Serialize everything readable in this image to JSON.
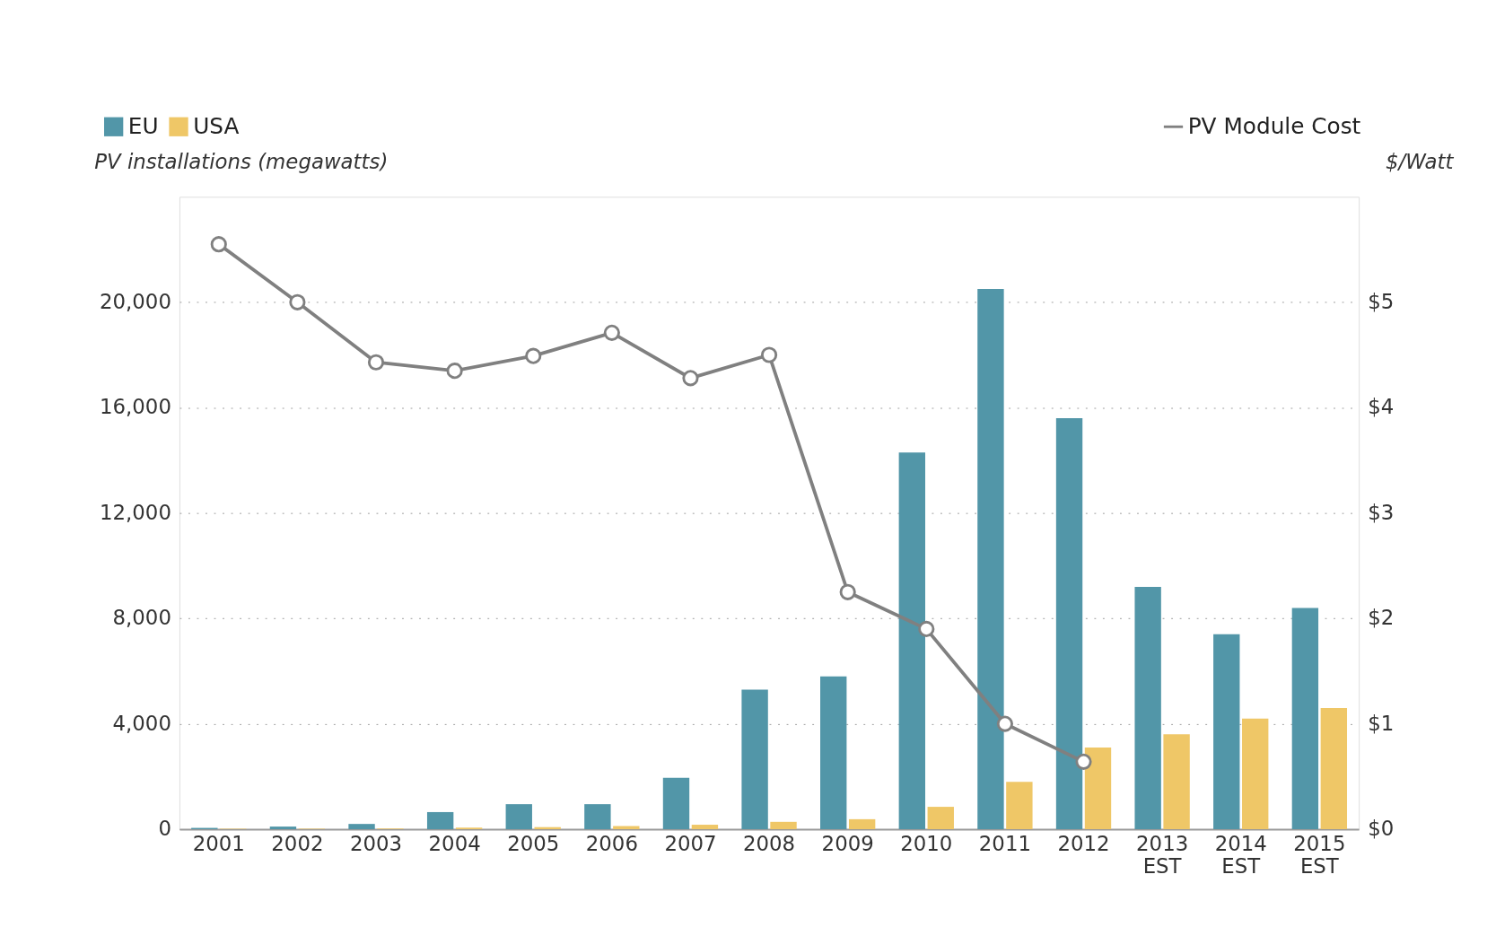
{
  "chart_data": {
    "type": "bar",
    "categories": [
      "2001",
      "2002",
      "2003",
      "2004",
      "2005",
      "2006",
      "2007",
      "2008",
      "2009",
      "2010",
      "2011",
      "2012",
      "2013 EST",
      "2014 EST",
      "2015 EST"
    ],
    "ylabel": "PV installations (megawatts)",
    "y2label": "$/Watt",
    "ylim": [
      0,
      24000
    ],
    "yticks": [
      {
        "value": 0,
        "label": "0"
      },
      {
        "value": 4000,
        "label": "4,000"
      },
      {
        "value": 8000,
        "label": "8,000"
      },
      {
        "value": 12000,
        "label": "12,000"
      },
      {
        "value": 16000,
        "label": "16,000"
      },
      {
        "value": 20000,
        "label": "20,000"
      }
    ],
    "y2lim": [
      0,
      6
    ],
    "y2ticks": [
      {
        "value": 0,
        "label": "$0"
      },
      {
        "value": 1,
        "label": "$1"
      },
      {
        "value": 2,
        "label": "$2"
      },
      {
        "value": 3,
        "label": "$3"
      },
      {
        "value": 4,
        "label": "$4"
      },
      {
        "value": 5,
        "label": "$5"
      }
    ],
    "series": [
      {
        "name": "EU",
        "color": "#5296a8",
        "values": [
          50,
          100,
          200,
          650,
          950,
          950,
          1950,
          5300,
          5800,
          14300,
          20500,
          15600,
          9200,
          7400,
          8400
        ]
      },
      {
        "name": "USA",
        "color": "#efc767",
        "values": [
          20,
          20,
          30,
          60,
          80,
          120,
          170,
          280,
          380,
          850,
          1800,
          3100,
          3600,
          4200,
          4600
        ]
      },
      {
        "name": "PV Module Cost",
        "type": "line",
        "axis": "y2",
        "color": "#808080",
        "values": [
          5.55,
          5.0,
          4.43,
          4.35,
          4.49,
          4.71,
          4.28,
          4.5,
          2.25,
          1.9,
          1.0,
          0.64,
          null,
          null,
          null
        ]
      }
    ],
    "grid": "y",
    "legend": "top",
    "marker": "circle",
    "line_style": "solid"
  }
}
